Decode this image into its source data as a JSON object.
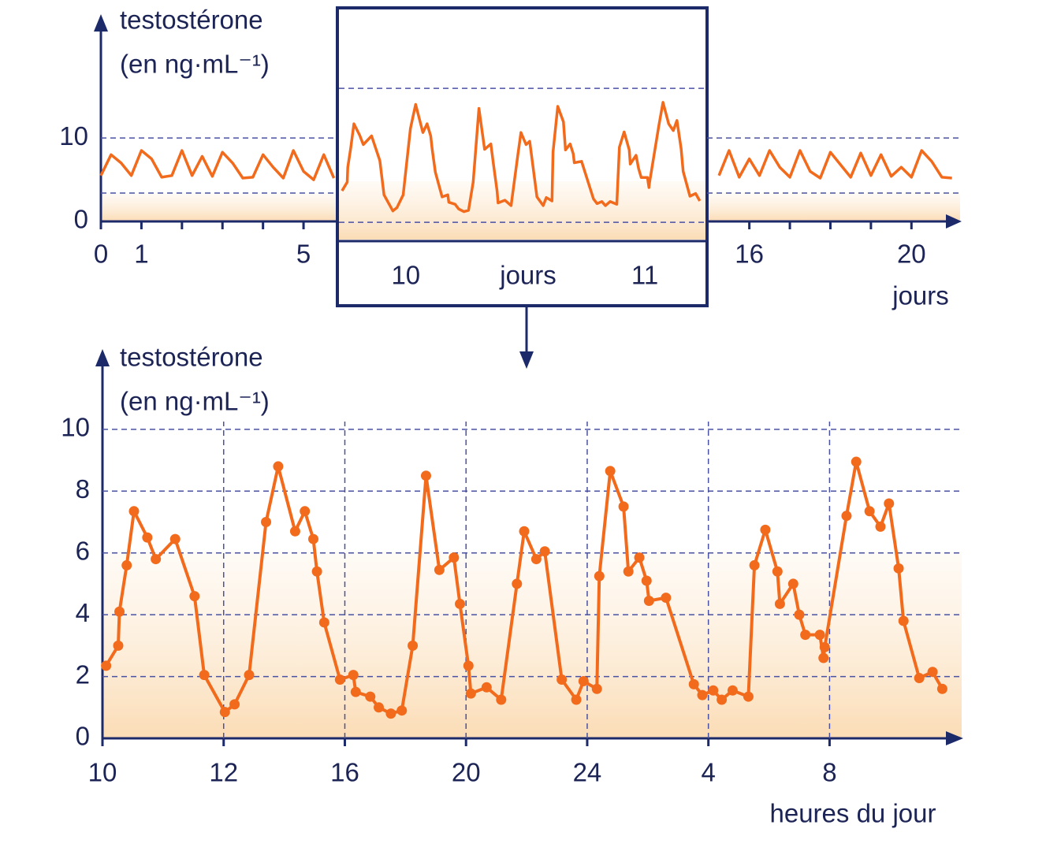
{
  "chart_data": [
    {
      "type": "line",
      "ylabel": "testostérone",
      "yunit": "(en ng·mL⁻¹)",
      "xlabel": "jours",
      "xlim": [
        0,
        21.2
      ],
      "ylim": [
        0,
        24
      ],
      "xticks": [
        0,
        1,
        5,
        16,
        20
      ],
      "xminor_ticks": [
        2,
        3,
        4,
        17,
        18,
        19
      ],
      "yticks": [
        0,
        10
      ],
      "grid": true,
      "reference_lines": [
        3.4
      ],
      "series": [
        {
          "color": "#f26b1d",
          "x": [
            0,
            0.25,
            0.5,
            0.75,
            1,
            1.25,
            1.5,
            1.75,
            2,
            2.25,
            2.5,
            2.75,
            3,
            3.25,
            3.5,
            3.75,
            4,
            4.25,
            4.5,
            4.75,
            5,
            5.25,
            5.5,
            5.75
          ],
          "values": [
            5.5,
            8,
            7,
            5.5,
            8.5,
            7.5,
            5.3,
            5.5,
            8.5,
            5.5,
            7.8,
            5.4,
            8.3,
            7,
            5.2,
            5.3,
            8,
            6.5,
            5.2,
            8.5,
            6,
            5,
            8,
            5.2
          ]
        },
        {
          "color": "#f26b1d",
          "x": [
            15.25,
            15.5,
            15.75,
            16,
            16.25,
            16.5,
            16.75,
            17,
            17.25,
            17.5,
            17.75,
            18,
            18.25,
            18.5,
            18.75,
            19,
            19.25,
            19.5,
            19.75,
            20,
            20.25,
            20.5,
            20.75,
            21
          ],
          "values": [
            5.5,
            8.5,
            5.3,
            7.5,
            5.5,
            8.5,
            6.5,
            5.3,
            8.5,
            6,
            5.2,
            8.3,
            6.8,
            5.3,
            8.2,
            5.5,
            8,
            5.4,
            6.5,
            5.3,
            8.5,
            7.2,
            5.3,
            5.2
          ]
        }
      ],
      "inset": {
        "xlabel": "jours",
        "xlim": [
          -0.06,
          7.07
        ],
        "ylim": [
          -1.4,
          16
        ],
        "grid_lines": [
          0,
          10
        ],
        "xticks": [
          {
            "value": 1.26,
            "label": "10"
          },
          {
            "value": 5.87,
            "label": "11"
          }
        ]
      }
    },
    {
      "type": "line",
      "ylabel": "testostérone",
      "yunit": "(en ng·mL⁻¹)",
      "xlabel": "heures du jour",
      "xlim": [
        0,
        7.09
      ],
      "ylim": [
        0,
        12.7
      ],
      "grid": true,
      "markers": true,
      "color": "#f26b1d",
      "xticks": [
        {
          "value": 0,
          "label": "10"
        },
        {
          "value": 1,
          "label": "12"
        },
        {
          "value": 2,
          "label": "16"
        },
        {
          "value": 3,
          "label": "20"
        },
        {
          "value": 4,
          "label": "24"
        },
        {
          "value": 5,
          "label": "4"
        },
        {
          "value": 6,
          "label": "8"
        }
      ],
      "yticks": [
        0,
        2,
        4,
        6,
        8,
        10
      ],
      "x": [
        0.03,
        0.13,
        0.14,
        0.2,
        0.26,
        0.37,
        0.44,
        0.6,
        0.76,
        0.84,
        1.01,
        1.09,
        1.21,
        1.35,
        1.45,
        1.59,
        1.67,
        1.74,
        1.77,
        1.83,
        1.96,
        2.07,
        2.09,
        2.21,
        2.28,
        2.38,
        2.47,
        2.56,
        2.67,
        2.78,
        2.9,
        2.95,
        3.02,
        3.04,
        3.17,
        3.29,
        3.42,
        3.48,
        3.58,
        3.65,
        3.79,
        3.91,
        3.97,
        4.08,
        4.1,
        4.19,
        4.3,
        4.34,
        4.43,
        4.49,
        4.51,
        4.65,
        4.88,
        4.95,
        5.04,
        5.11,
        5.2,
        5.33,
        5.38,
        5.47,
        5.57,
        5.59,
        5.7,
        5.75,
        5.8,
        5.92,
        5.95,
        5.96,
        6.14,
        6.22,
        6.33,
        6.42,
        6.49,
        6.57,
        6.61,
        6.74,
        6.85,
        6.93
      ],
      "values": [
        2.35,
        3.0,
        4.1,
        5.6,
        7.35,
        6.5,
        5.8,
        6.45,
        4.6,
        2.05,
        0.85,
        1.1,
        2.05,
        7.0,
        8.8,
        6.7,
        7.35,
        6.45,
        5.4,
        3.75,
        1.9,
        2.05,
        1.5,
        1.35,
        1.0,
        0.8,
        0.9,
        3.0,
        8.5,
        5.45,
        5.85,
        4.35,
        2.35,
        1.45,
        1.65,
        1.25,
        5.0,
        6.7,
        5.8,
        6.05,
        1.9,
        1.25,
        1.85,
        1.6,
        5.25,
        8.65,
        7.5,
        5.4,
        5.85,
        5.1,
        4.45,
        4.55,
        1.75,
        1.4,
        1.55,
        1.25,
        1.55,
        1.35,
        5.6,
        6.75,
        5.4,
        4.35,
        5.0,
        4.0,
        3.35,
        3.35,
        2.6,
        2.95,
        7.2,
        8.95,
        7.35,
        6.85,
        7.6,
        5.5,
        3.8,
        1.95,
        2.15,
        1.6
      ]
    }
  ]
}
